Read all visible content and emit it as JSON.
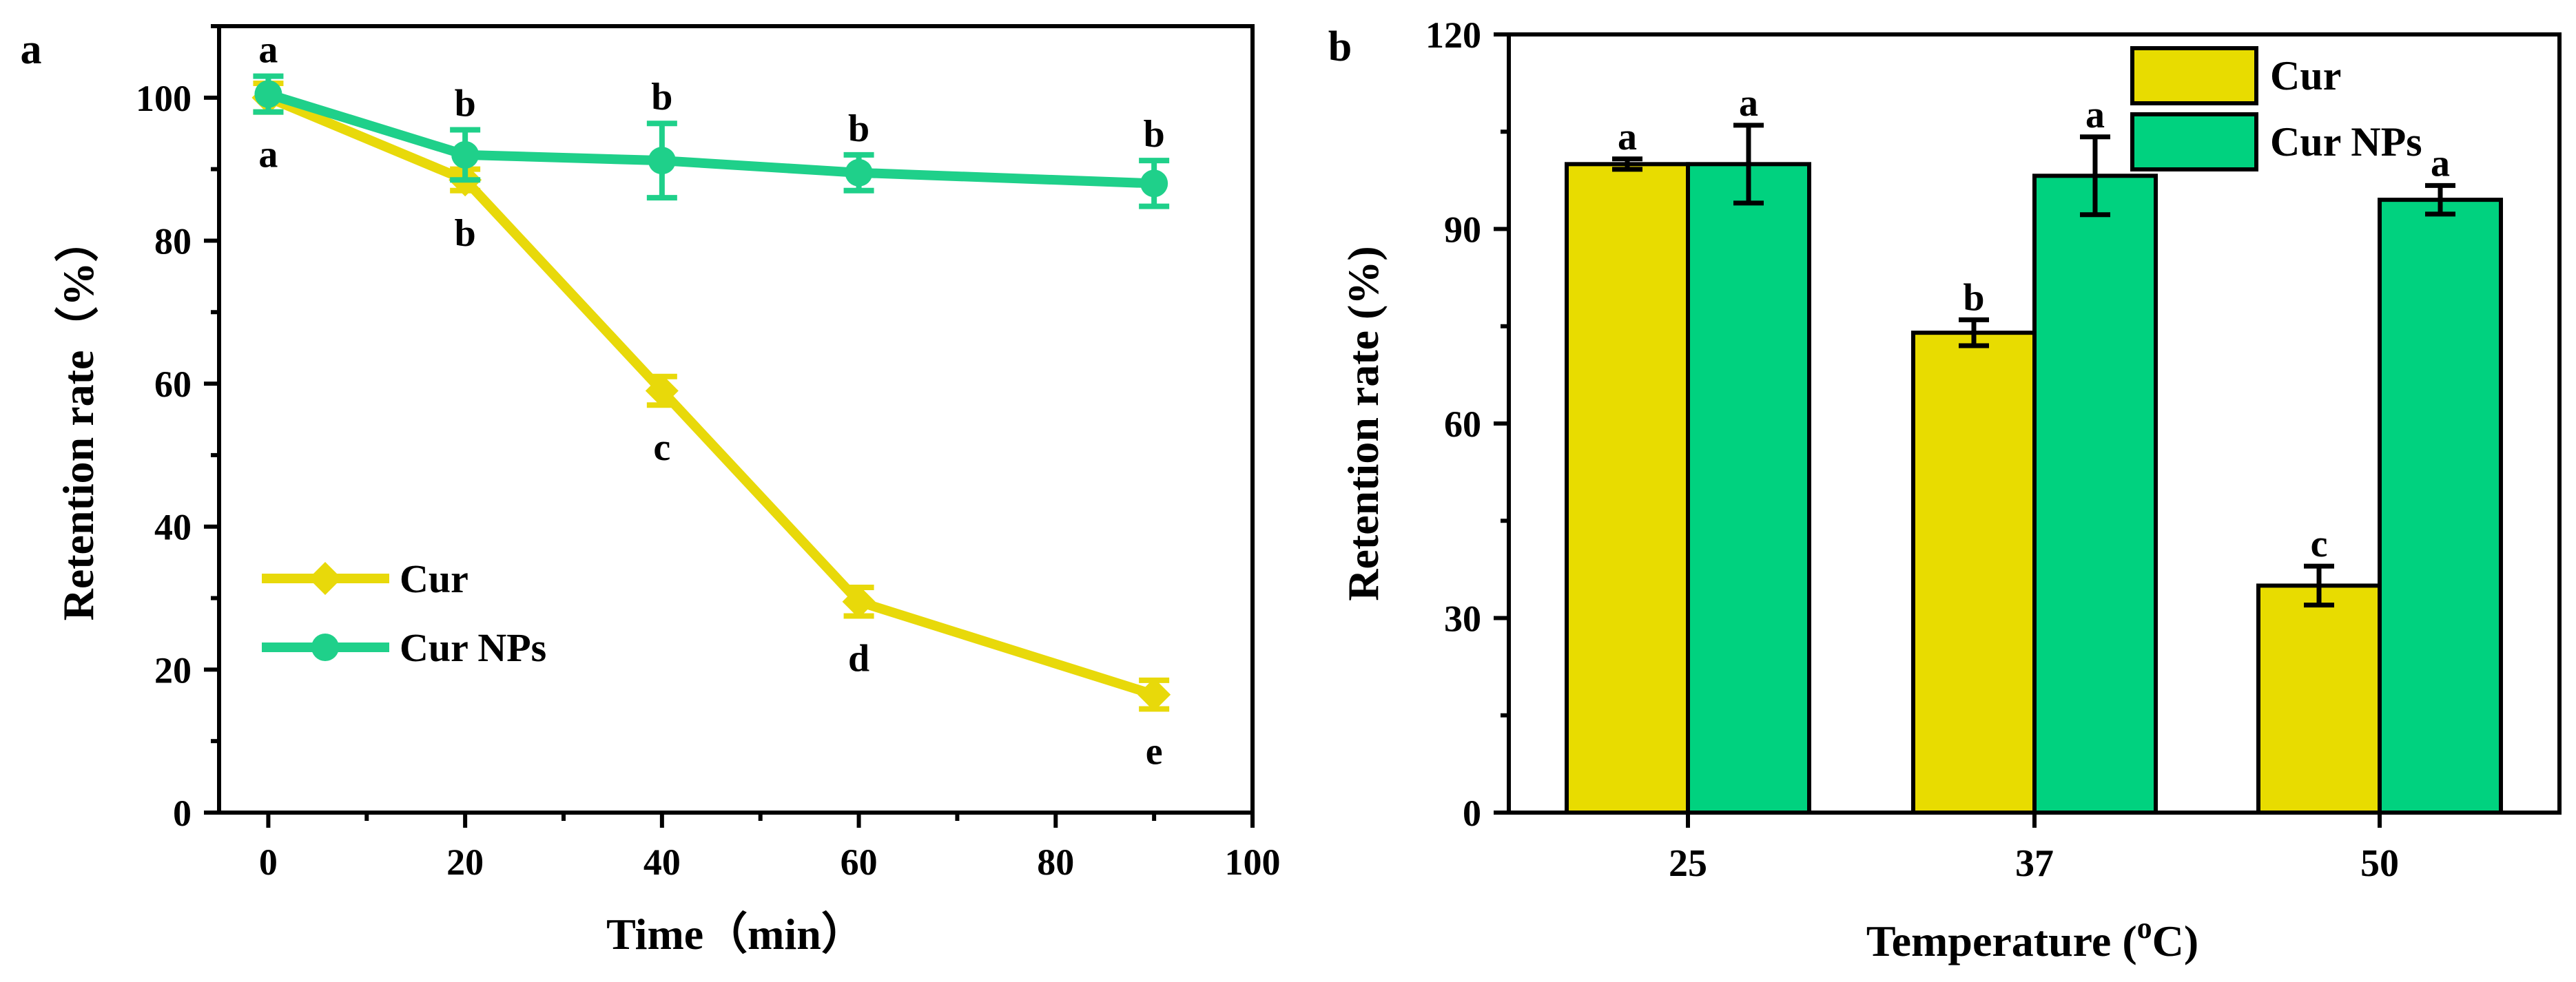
{
  "chart_data": [
    {
      "panel_label": "a",
      "type": "line",
      "xlabel": "Time（min）",
      "ylabel": "Retention rate（%）",
      "xlim": [
        -5,
        100
      ],
      "ylim": [
        0,
        110
      ],
      "xticks": [
        0,
        20,
        40,
        60,
        80,
        100
      ],
      "yticks": [
        0,
        20,
        40,
        60,
        80,
        100
      ],
      "legend_position": "lower-left",
      "series": [
        {
          "name": "Cur",
          "color": "#E8D90A",
          "marker": "diamond",
          "x": [
            0,
            20,
            40,
            60,
            90
          ],
          "y": [
            100,
            88.5,
            59,
            29.5,
            16.5
          ],
          "error": [
            2,
            1.5,
            2,
            2,
            2
          ],
          "labels": [
            "a",
            "b",
            "c",
            "d",
            "e"
          ]
        },
        {
          "name": "Cur NPs",
          "color": "#1FD08A",
          "marker": "circle",
          "x": [
            0,
            20,
            40,
            60,
            90
          ],
          "y": [
            100.5,
            92,
            91.2,
            89.5,
            88
          ],
          "error": [
            2.5,
            3.5,
            5.2,
            2.5,
            3.2
          ],
          "labels": [
            "a",
            "b",
            "b",
            "b",
            "b"
          ]
        }
      ]
    },
    {
      "panel_label": "b",
      "type": "bar",
      "xlabel_prefix": "Temperature (",
      "xlabel_sup": "o",
      "xlabel_suffix": "C)",
      "ylabel": "Retention rate (%)",
      "ylim": [
        0,
        120
      ],
      "yticks": [
        0,
        30,
        60,
        90,
        120
      ],
      "categories": [
        "25",
        "37",
        "50"
      ],
      "legend_position": "top-right",
      "series": [
        {
          "name": "Cur",
          "color": "#E8DC00",
          "values": [
            100,
            74,
            35
          ],
          "error": [
            0.8,
            2,
            3
          ],
          "labels": [
            "a",
            "b",
            "c"
          ]
        },
        {
          "name": "Cur NPs",
          "color": "#00D27F",
          "values": [
            100,
            98.2,
            94.5
          ],
          "error": [
            6,
            6,
            2.2
          ],
          "labels": [
            "a",
            "a",
            "a"
          ]
        }
      ]
    }
  ]
}
